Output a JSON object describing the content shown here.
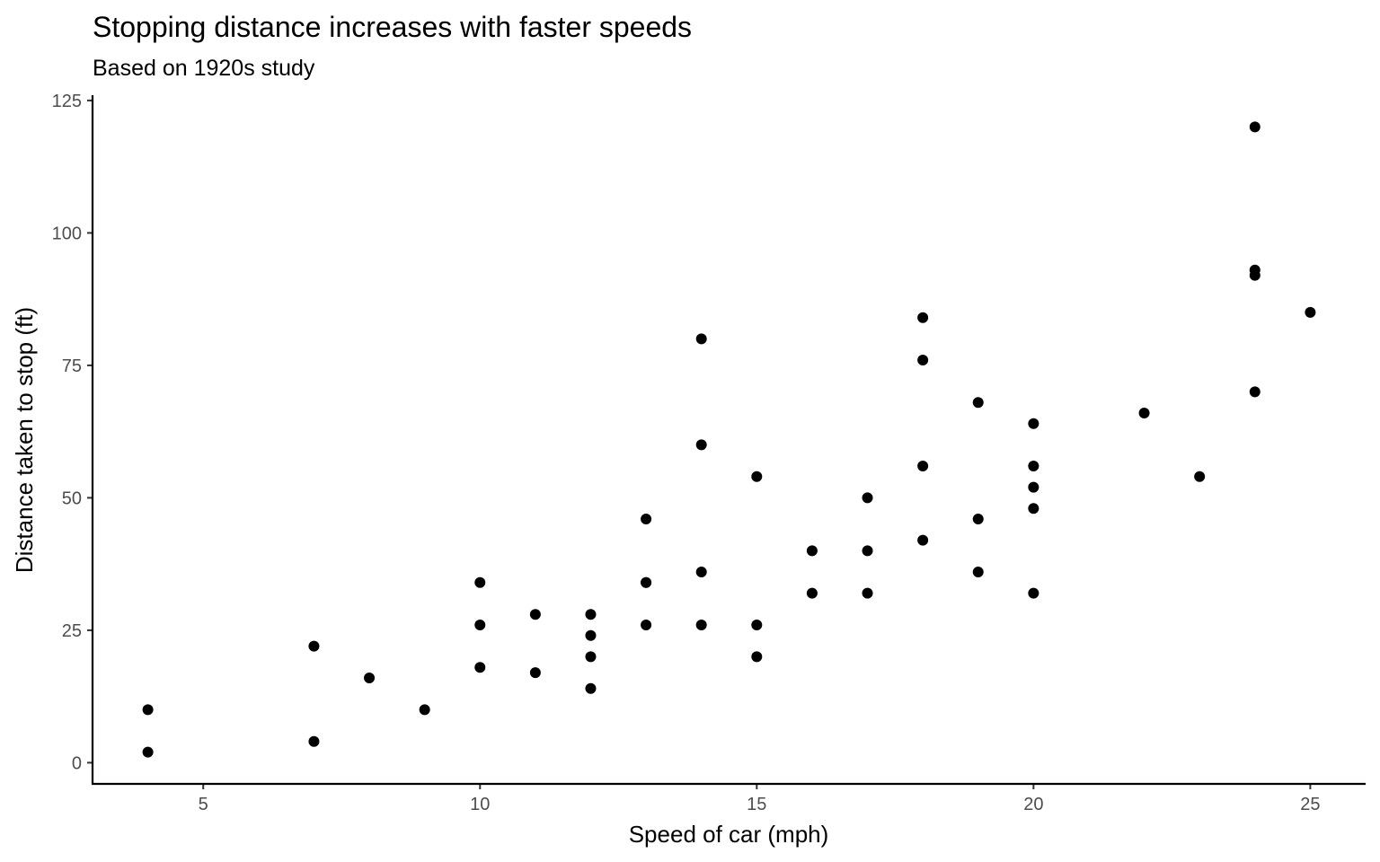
{
  "chart_data": {
    "type": "scatter",
    "title": "Stopping distance increases with faster speeds",
    "subtitle": "Based on 1920s study",
    "xlabel": "Speed of car (mph)",
    "ylabel": "Distance taken to stop (ft)",
    "xlim": [
      3,
      26
    ],
    "ylim": [
      -4,
      126
    ],
    "xticks": [
      5,
      10,
      15,
      20,
      25
    ],
    "yticks": [
      0,
      25,
      50,
      75,
      100,
      125
    ],
    "grid": false,
    "legend": "none",
    "point_color": "#000000",
    "series": [
      {
        "x": [
          4,
          4,
          7,
          7,
          8,
          9,
          10,
          10,
          10,
          11,
          11,
          12,
          12,
          12,
          12,
          13,
          13,
          13,
          13,
          14,
          14,
          14,
          14,
          15,
          15,
          15,
          16,
          16,
          17,
          17,
          17,
          18,
          18,
          18,
          18,
          19,
          19,
          19,
          20,
          20,
          20,
          20,
          20,
          22,
          23,
          24,
          24,
          24,
          24,
          25
        ],
        "y": [
          2,
          10,
          4,
          22,
          16,
          10,
          18,
          26,
          34,
          17,
          28,
          14,
          20,
          24,
          28,
          26,
          34,
          34,
          46,
          26,
          36,
          60,
          80,
          20,
          26,
          54,
          32,
          40,
          32,
          40,
          50,
          42,
          56,
          76,
          84,
          36,
          46,
          68,
          32,
          48,
          52,
          56,
          64,
          66,
          54,
          70,
          92,
          93,
          120,
          85
        ]
      }
    ]
  }
}
